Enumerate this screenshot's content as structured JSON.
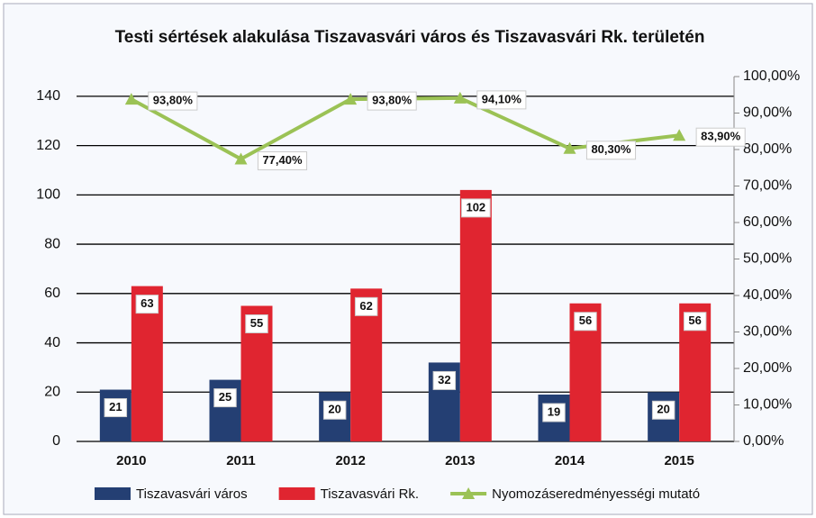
{
  "chart_data": {
    "type": "bar",
    "title": "Testi sértések alakulása Tiszavasvári város és Tiszavasvári Rk. területén",
    "categories": [
      "2010",
      "2011",
      "2012",
      "2013",
      "2014",
      "2015"
    ],
    "series": [
      {
        "name": "Tiszavasvári város",
        "color": "#243f73",
        "values": [
          21,
          25,
          20,
          32,
          19,
          20
        ]
      },
      {
        "name": "Tiszavasvári Rk.",
        "color": "#e02530",
        "values": [
          63,
          55,
          62,
          102,
          56,
          56
        ]
      },
      {
        "name": "Nyomozáseredményességi mutató",
        "color": "#9bc255",
        "type": "line",
        "axis": "y2",
        "values": [
          93.8,
          77.4,
          93.8,
          94.1,
          80.3,
          83.9
        ],
        "value_labels": [
          "93,80%",
          "77,40%",
          "93,80%",
          "94,10%",
          "80,30%",
          "83,90%"
        ]
      }
    ],
    "ylim": [
      0,
      148
    ],
    "yticks": [
      0,
      20,
      40,
      60,
      80,
      100,
      120,
      140
    ],
    "y2lim": [
      0,
      100
    ],
    "y2ticks": [
      {
        "value": 0,
        "label": "0,00%"
      },
      {
        "value": 10,
        "label": "10,00%"
      },
      {
        "value": 20,
        "label": "20,00%"
      },
      {
        "value": 30,
        "label": "30,00%"
      },
      {
        "value": 40,
        "label": "40,00%"
      },
      {
        "value": 50,
        "label": "50,00%"
      },
      {
        "value": 60,
        "label": "60,00%"
      },
      {
        "value": 70,
        "label": "70,00%"
      },
      {
        "value": 80,
        "label": "80,00%"
      },
      {
        "value": 90,
        "label": "90,00%"
      },
      {
        "value": 100,
        "label": "100,00%"
      }
    ],
    "grid": true,
    "legend": "bottom"
  }
}
